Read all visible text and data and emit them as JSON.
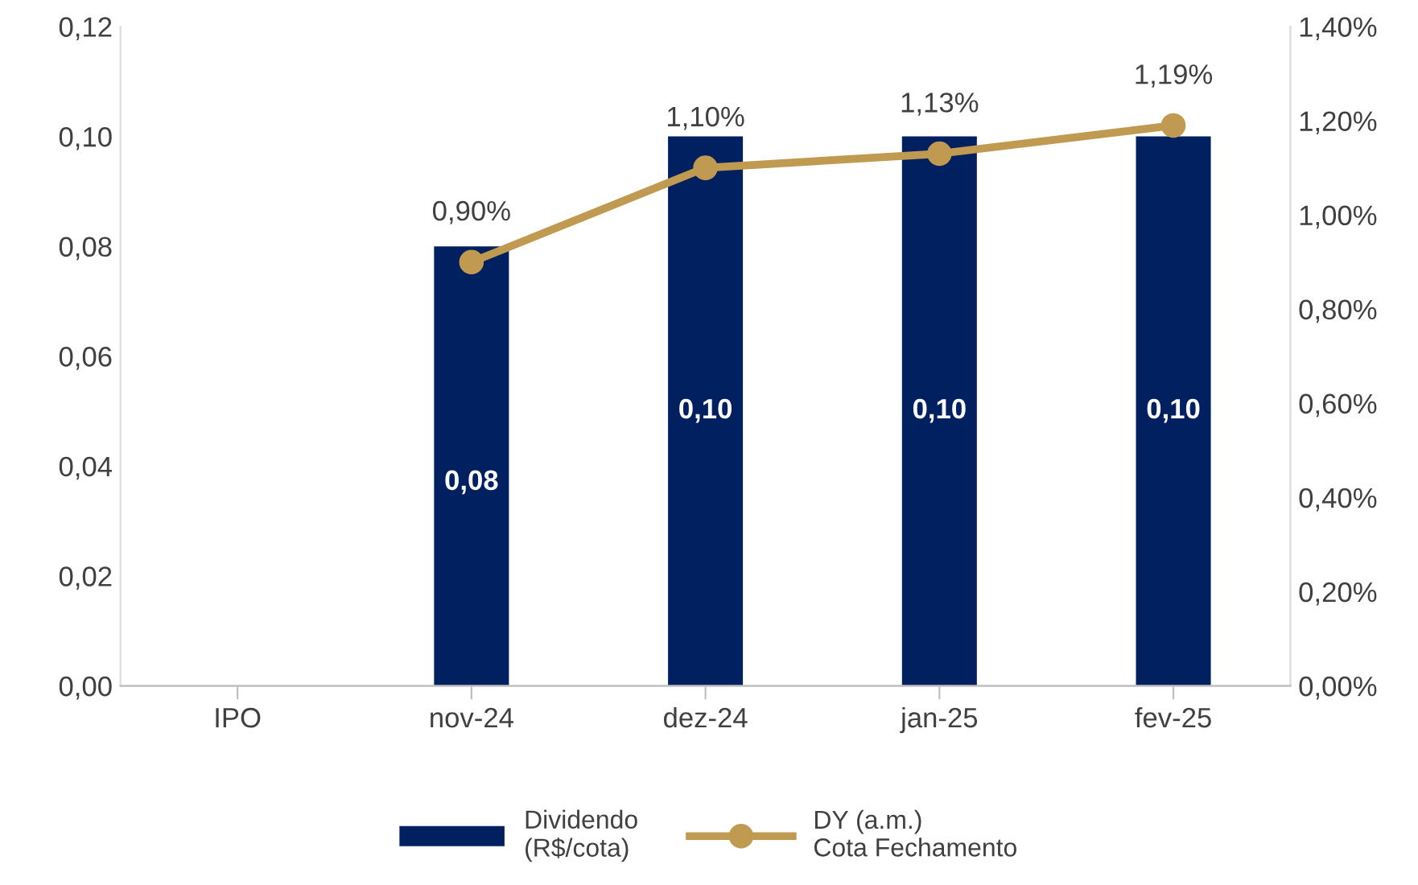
{
  "chart_data": {
    "type": "bar",
    "categories": [
      "IPO",
      "nov-24",
      "dez-24",
      "jan-25",
      "fev-25"
    ],
    "series": [
      {
        "name": "Dividendo\n(R$/cota)",
        "type": "bar",
        "color": "#002060",
        "values": [
          null,
          0.08,
          0.1,
          0.1,
          0.1
        ],
        "value_labels": [
          null,
          "0,08",
          "0,10",
          "0,10",
          "0,10"
        ]
      },
      {
        "name": "DY (a.m.)\nCota Fechamento",
        "type": "line",
        "axis": "y2",
        "color": "#c09a50",
        "marker": "circle",
        "line_style": "solid",
        "values": [
          null,
          0.9,
          1.1,
          1.13,
          1.19
        ],
        "value_labels": [
          null,
          "0,90%",
          "1,10%",
          "1,13%",
          "1,19%"
        ]
      }
    ],
    "ylim": [
      0,
      0.12
    ],
    "yticks": [
      {
        "value": 0,
        "label": "0,00"
      },
      {
        "value": 0.02,
        "label": "0,02"
      },
      {
        "value": 0.04,
        "label": "0,04"
      },
      {
        "value": 0.06,
        "label": "0,06"
      },
      {
        "value": 0.08,
        "label": "0,08"
      },
      {
        "value": 0.1,
        "label": "0,10"
      },
      {
        "value": 0.12,
        "label": "0,12"
      }
    ],
    "y2lim": [
      0,
      1.4
    ],
    "y2ticks": [
      {
        "value": 0,
        "label": "0,00%"
      },
      {
        "value": 0.2,
        "label": "0,20%"
      },
      {
        "value": 0.4,
        "label": "0,40%"
      },
      {
        "value": 0.6,
        "label": "0,60%"
      },
      {
        "value": 0.8,
        "label": "0,80%"
      },
      {
        "value": 1.0,
        "label": "1,00%"
      },
      {
        "value": 1.2,
        "label": "1,20%"
      },
      {
        "value": 1.4,
        "label": "1,40%"
      }
    ],
    "grid": false,
    "legend": "bottom"
  }
}
